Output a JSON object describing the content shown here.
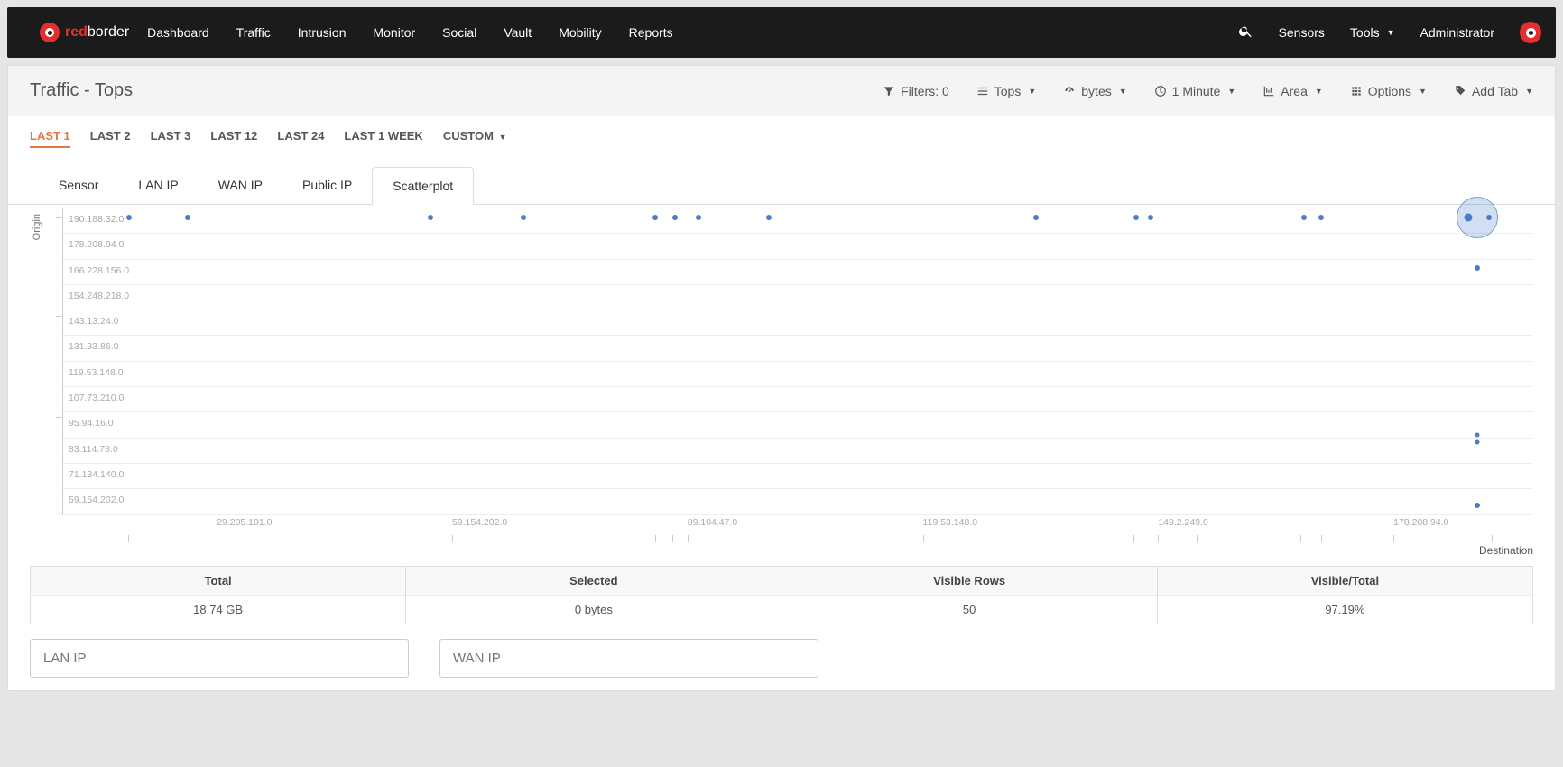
{
  "brand": {
    "red": "red",
    "rest": "border"
  },
  "nav": {
    "items": [
      "Dashboard",
      "Traffic",
      "Intrusion",
      "Monitor",
      "Social",
      "Vault",
      "Mobility",
      "Reports"
    ]
  },
  "navRight": {
    "sensors": "Sensors",
    "tools": "Tools",
    "admin": "Administrator"
  },
  "page": {
    "title": "Traffic - Tops"
  },
  "toolbar": {
    "filters": "Filters: 0",
    "tops": "Tops",
    "bytes": "bytes",
    "minute": "1 Minute",
    "area": "Area",
    "options": "Options",
    "addtab": "Add Tab"
  },
  "timeRange": {
    "items": [
      "LAST 1",
      "LAST 2",
      "LAST 3",
      "LAST 12",
      "LAST 24",
      "LAST 1 WEEK",
      "CUSTOM"
    ],
    "active": 0,
    "custom_has_caret": true
  },
  "innerTabs": {
    "items": [
      "Sensor",
      "LAN IP",
      "WAN IP",
      "Public IP",
      "Scatterplot"
    ],
    "active": 4
  },
  "scatter": {
    "y_title": "Origin",
    "x_title": "Destination",
    "y_labels": [
      "190.188.32.0",
      "178.208.94.0",
      "166.228.156.0",
      "154.248.218.0",
      "143.13.24.0",
      "131.33.86.0",
      "119.53.148.0",
      "107.73.210.0",
      "95.94.16.0",
      "83.114.78.0",
      "71.134.140.0",
      "59.154.202.0"
    ],
    "x_ticks": [
      {
        "label": "29.205.101.0",
        "pct": 10.5
      },
      {
        "label": "59.154.202.0",
        "pct": 26.5
      },
      {
        "label": "89.104.47.0",
        "pct": 42.5
      },
      {
        "label": "119.53.148.0",
        "pct": 58.5
      },
      {
        "label": "149.2.249.0",
        "pct": 74.5
      },
      {
        "label": "178.208.94.0",
        "pct": 90.5
      }
    ],
    "x_minors": [
      4.5,
      10.5,
      26.5,
      40.3,
      41.5,
      42.5,
      44.5,
      58.5,
      72.8,
      74.5,
      77.1,
      84.2,
      85.6,
      90.5,
      97.2
    ],
    "y_minors": [
      3,
      35,
      68
    ],
    "points": [
      {
        "x": 4.5,
        "y": 3,
        "d": 6
      },
      {
        "x": 8.5,
        "y": 3,
        "d": 6
      },
      {
        "x": 25.0,
        "y": 3,
        "d": 6
      },
      {
        "x": 31.3,
        "y": 3,
        "d": 6
      },
      {
        "x": 40.3,
        "y": 3,
        "d": 6
      },
      {
        "x": 41.6,
        "y": 3,
        "d": 6
      },
      {
        "x": 43.2,
        "y": 3,
        "d": 6
      },
      {
        "x": 48.0,
        "y": 3,
        "d": 6
      },
      {
        "x": 66.2,
        "y": 3,
        "d": 6
      },
      {
        "x": 73.0,
        "y": 3,
        "d": 6
      },
      {
        "x": 74.0,
        "y": 3,
        "d": 6
      },
      {
        "x": 84.4,
        "y": 3,
        "d": 6
      },
      {
        "x": 85.6,
        "y": 3,
        "d": 6
      },
      {
        "x": 95.6,
        "y": 3,
        "d": 9
      },
      {
        "x": 97.0,
        "y": 3,
        "d": 6
      },
      {
        "x": 96.2,
        "y": 19.5,
        "d": 6
      },
      {
        "x": 96.2,
        "y": 74,
        "d": 5
      },
      {
        "x": 96.2,
        "y": 76.5,
        "d": 5
      },
      {
        "x": 96.2,
        "y": 97,
        "d": 6
      }
    ],
    "big_circle": {
      "x": 96.2,
      "y": 3,
      "d": 46
    },
    "point_color": "#4a7dc9",
    "grid_color": "#eeeeee"
  },
  "stats": {
    "cols": [
      {
        "h": "Total",
        "v": "18.74 GB"
      },
      {
        "h": "Selected",
        "v": "0 bytes"
      },
      {
        "h": "Visible Rows",
        "v": "50"
      },
      {
        "h": "Visible/Total",
        "v": "97.19%"
      }
    ]
  },
  "inputs": {
    "lan": "LAN IP",
    "wan": "WAN IP"
  }
}
